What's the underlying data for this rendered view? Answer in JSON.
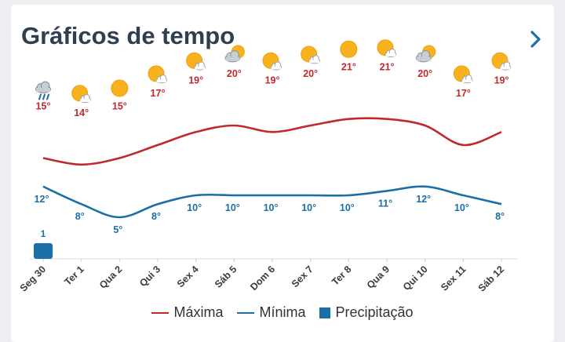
{
  "header": {
    "title": "Gráficos de tempo"
  },
  "colors": {
    "max": "#c0282d",
    "min": "#1a6fa6",
    "precip": "#1a6fa6"
  },
  "legend": {
    "max": "Máxima",
    "min": "Mínima",
    "precip": "Precipitação"
  },
  "chart_data": {
    "type": "line",
    "categories": [
      "Seg 30",
      "Ter 1",
      "Qua 2",
      "Qui 3",
      "Sex 4",
      "Sáb 5",
      "Dom 6",
      "Sex 7",
      "Ter 8",
      "Qua 9",
      "Qui 10",
      "Sex 11",
      "Sáb 12"
    ],
    "icons": [
      "rain-cloud-icon",
      "partly-sunny-icon",
      "sun-icon",
      "partly-sunny-icon",
      "partly-sunny-icon",
      "cloudy-sun-icon",
      "partly-sunny-icon",
      "partly-sunny-icon",
      "sun-icon",
      "partly-sunny-icon",
      "cloudy-sun-icon",
      "partly-sunny-icon",
      "partly-sunny-icon"
    ],
    "series": [
      {
        "name": "Máxima",
        "values": [
          15,
          14,
          15,
          17,
          19,
          20,
          19,
          20,
          21,
          21,
          20,
          17,
          19
        ],
        "labels": [
          "15°",
          "14°",
          "15°",
          "17°",
          "19°",
          "20°",
          "19°",
          "20°",
          "21°",
          "21°",
          "20°",
          "17°",
          "19°"
        ]
      },
      {
        "name": "Mínima",
        "values": [
          12,
          8,
          5,
          8,
          10,
          10,
          10,
          10,
          10,
          11,
          12,
          10,
          8
        ],
        "labels": [
          "12°",
          "8°",
          "5°",
          "8°",
          "10°",
          "10°",
          "10°",
          "10°",
          "10°",
          "11°",
          "12°",
          "10°",
          "8°"
        ]
      },
      {
        "name": "Precipitação",
        "values": [
          1,
          0,
          0,
          0,
          0,
          0,
          0,
          0,
          0,
          0,
          0,
          0,
          0
        ],
        "labels": [
          "1",
          "",
          "",
          "",
          "",
          "",
          "",
          "",
          "",
          "",
          "",
          "",
          ""
        ]
      }
    ],
    "legend_position": "bottom"
  }
}
